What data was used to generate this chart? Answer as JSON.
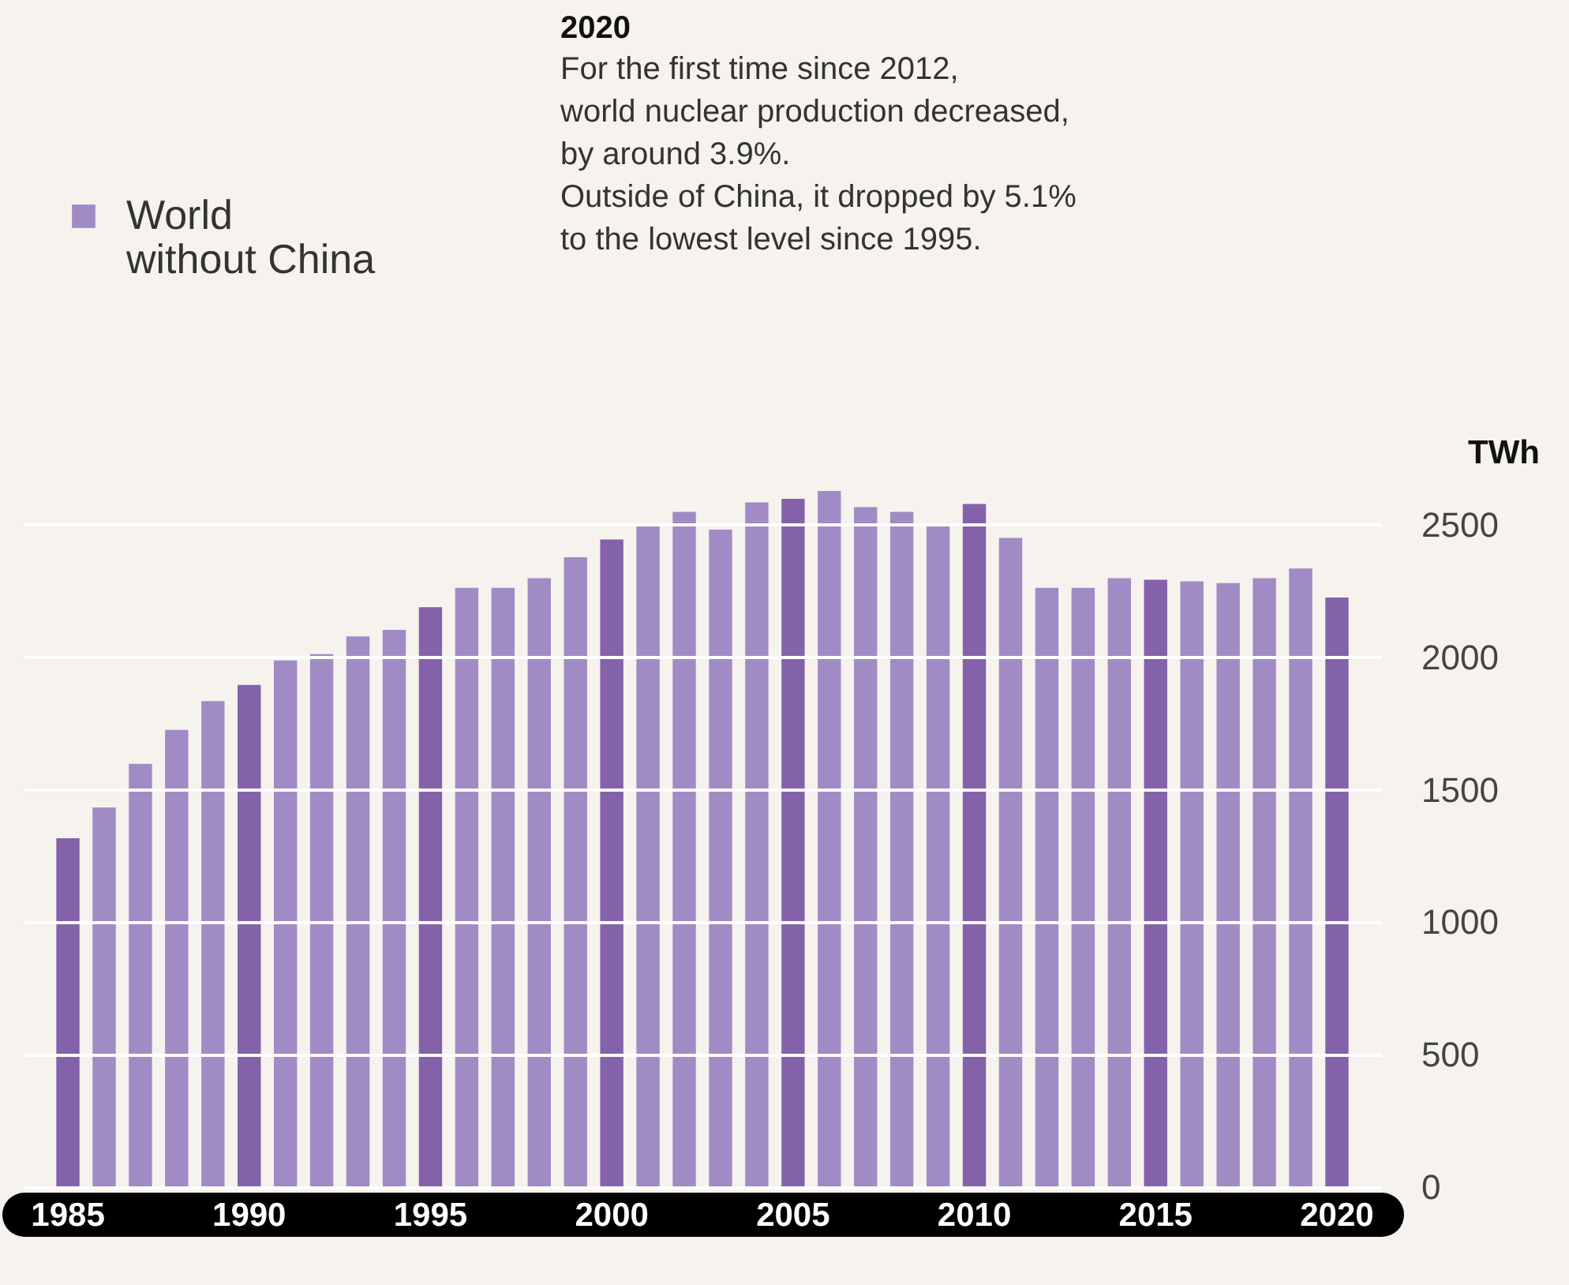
{
  "chart_data": {
    "type": "bar",
    "title": "2020",
    "annotations": [
      "For the first time since 2012,\nworld nuclear production decreased,\nby around 3.9%.",
      "Outside of China, it dropped by 5.1%\nto  the lowest level since 1995."
    ],
    "ylabel": "TWh",
    "categories": [
      "1985",
      null,
      null,
      null,
      null,
      "1990",
      null,
      null,
      null,
      null,
      "1995",
      null,
      null,
      null,
      null,
      "2000",
      null,
      null,
      null,
      null,
      "2005",
      null,
      null,
      null,
      null,
      "2010",
      null,
      null,
      null,
      null,
      "2015",
      null,
      null,
      null,
      null,
      "2020"
    ],
    "series": [
      {
        "name": "World\nwithout China",
        "color": "#a08bc4",
        "values": [
          1317,
          1433,
          1598,
          1726,
          1835,
          1896,
          1988,
          2012,
          2079,
          2104,
          2189,
          2262,
          2262,
          2299,
          2378,
          2445,
          2506,
          2549,
          2482,
          2585,
          2598,
          2628,
          2567,
          2549,
          2506,
          2579,
          2451,
          2262,
          2262,
          2299,
          2293,
          2287,
          2280,
          2299,
          2335,
          2226
        ],
        "colors": [
          "#8462aa",
          "#a08bc4",
          "#a08bc4",
          "#a08bc4",
          "#a08bc4",
          "#8462aa",
          "#a08bc4",
          "#a08bc4",
          "#a08bc4",
          "#a08bc4",
          "#8462aa",
          "#a08bc4",
          "#a08bc4",
          "#a08bc4",
          "#a08bc4",
          "#8462aa",
          "#a08bc4",
          "#a08bc4",
          "#a08bc4",
          "#a08bc4",
          "#8462aa",
          "#a08bc4",
          "#a08bc4",
          "#a08bc4",
          "#a08bc4",
          "#8462aa",
          "#a08bc4",
          "#a08bc4",
          "#a08bc4",
          "#a08bc4",
          "#8462aa",
          "#a08bc4",
          "#a08bc4",
          "#a08bc4",
          "#a08bc4",
          "#8462aa"
        ]
      }
    ],
    "ylim": [
      0,
      2640
    ],
    "yticks": [
      0,
      500,
      1000,
      1500,
      2000,
      2500
    ],
    "grid": "y",
    "legend": "top left"
  }
}
